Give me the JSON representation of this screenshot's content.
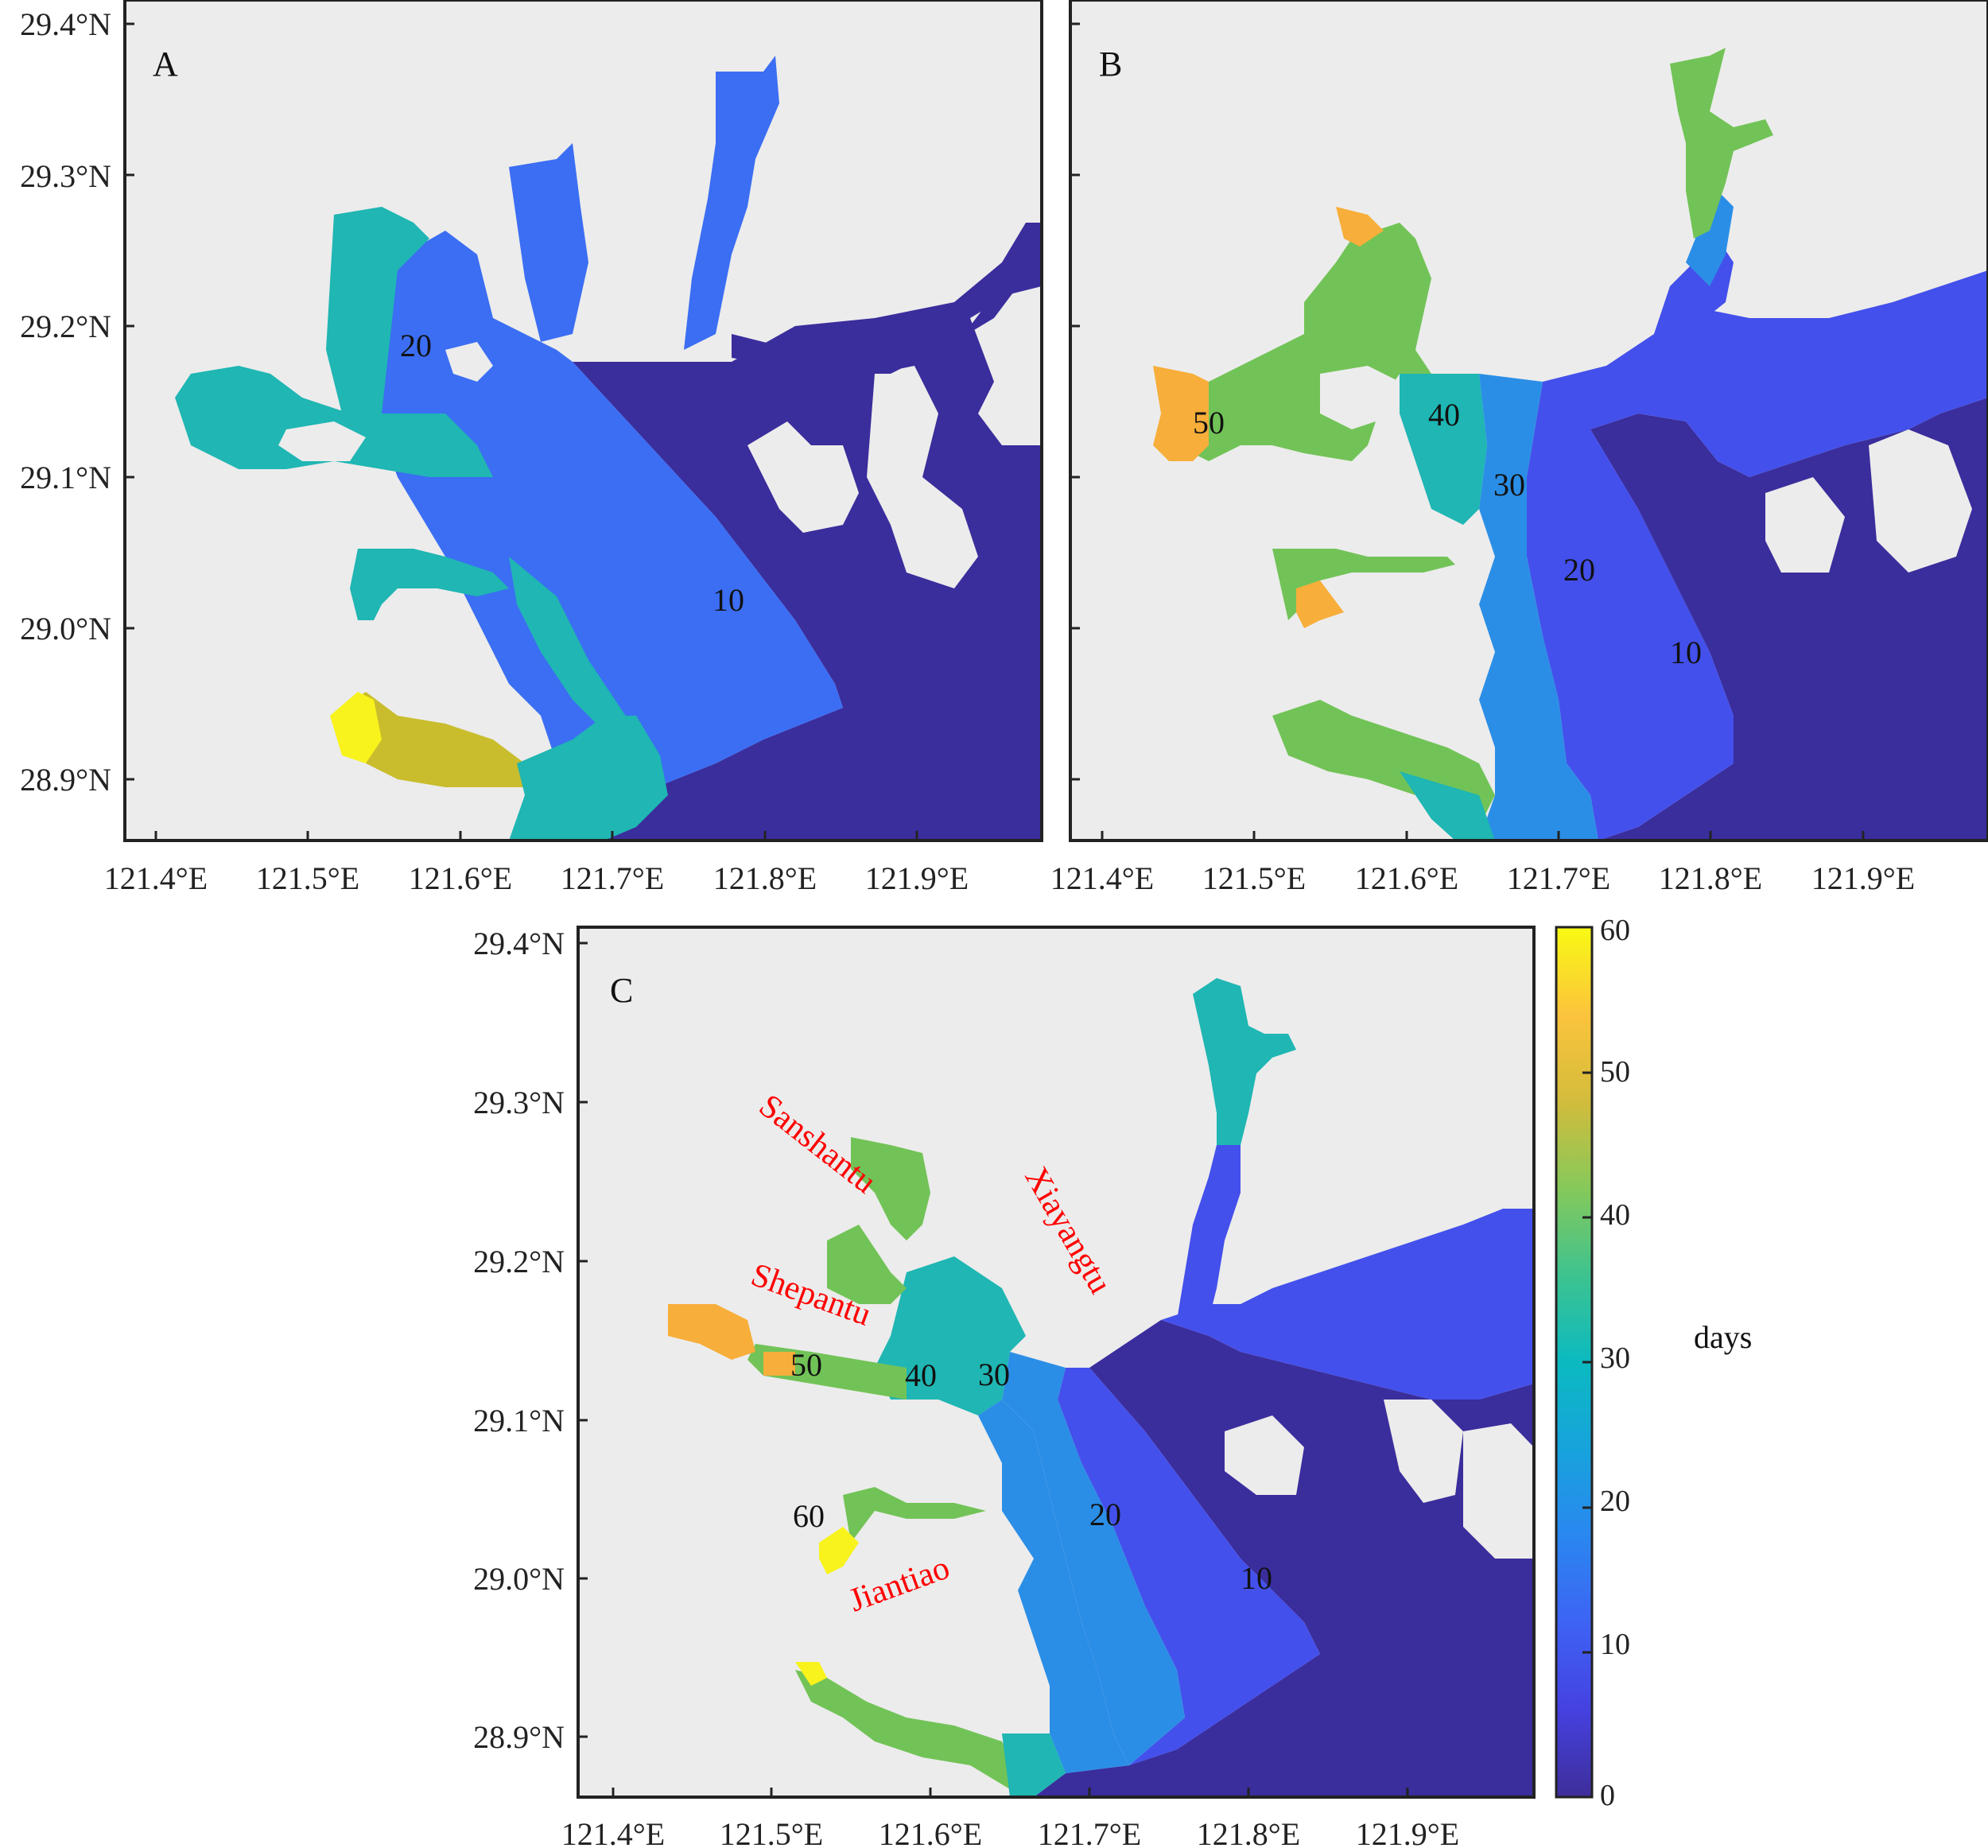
{
  "panels": [
    {
      "id": "A",
      "label": "A",
      "lat_ticks": [
        "29.4°N",
        "29.3°N",
        "29.2°N",
        "29.1°N",
        "29.0°N",
        "28.9°N"
      ],
      "lon_ticks": [
        "121.4°E",
        "121.5°E",
        "121.6°E",
        "121.7°E",
        "121.8°E",
        "121.9°E"
      ],
      "contour_labels": [
        "20",
        "10"
      ]
    },
    {
      "id": "B",
      "label": "B",
      "lon_ticks": [
        "121.4°E",
        "121.5°E",
        "121.6°E",
        "121.7°E",
        "121.8°E",
        "121.9°E"
      ],
      "contour_labels": [
        "50",
        "40",
        "30",
        "20",
        "10"
      ]
    },
    {
      "id": "C",
      "label": "C",
      "lat_ticks": [
        "29.4°N",
        "29.3°N",
        "29.2°N",
        "29.1°N",
        "29.0°N",
        "28.9°N"
      ],
      "lon_ticks": [
        "121.4°E",
        "121.5°E",
        "121.6°E",
        "121.7°E",
        "121.8°E",
        "121.9°E"
      ],
      "contour_labels": [
        "50",
        "40",
        "30",
        "60",
        "20",
        "10"
      ],
      "place_names": [
        "Sanshantu",
        "Shepantu",
        "Xiayangtu",
        "Jiantiao"
      ]
    }
  ],
  "colorbar": {
    "ticks": [
      "60",
      "50",
      "40",
      "30",
      "20",
      "10",
      "0"
    ],
    "unit": "days",
    "range": [
      0,
      60
    ],
    "colors": [
      "#3b2f9e",
      "#4051ec",
      "#2a7ff0",
      "#1aa3d8",
      "#1ab8b2",
      "#3cc08a",
      "#89c74f",
      "#d1b83c",
      "#f9ae35",
      "#f9f81a"
    ]
  },
  "map_colors": {
    "land": "#ececec",
    "days_0_5": "#3a2d9c",
    "days_5_10": "#4350eb",
    "days_10_15": "#3b6ef3",
    "days_15_20": "#2b8ee6",
    "days_20_25": "#19a5d1",
    "days_25_30": "#1fb6b3",
    "days_30_35": "#3cbf8a",
    "days_35_40": "#72c357",
    "days_45": "#c9bd2e",
    "days_50": "#f7ae3a",
    "days_60": "#f8f31c"
  }
}
